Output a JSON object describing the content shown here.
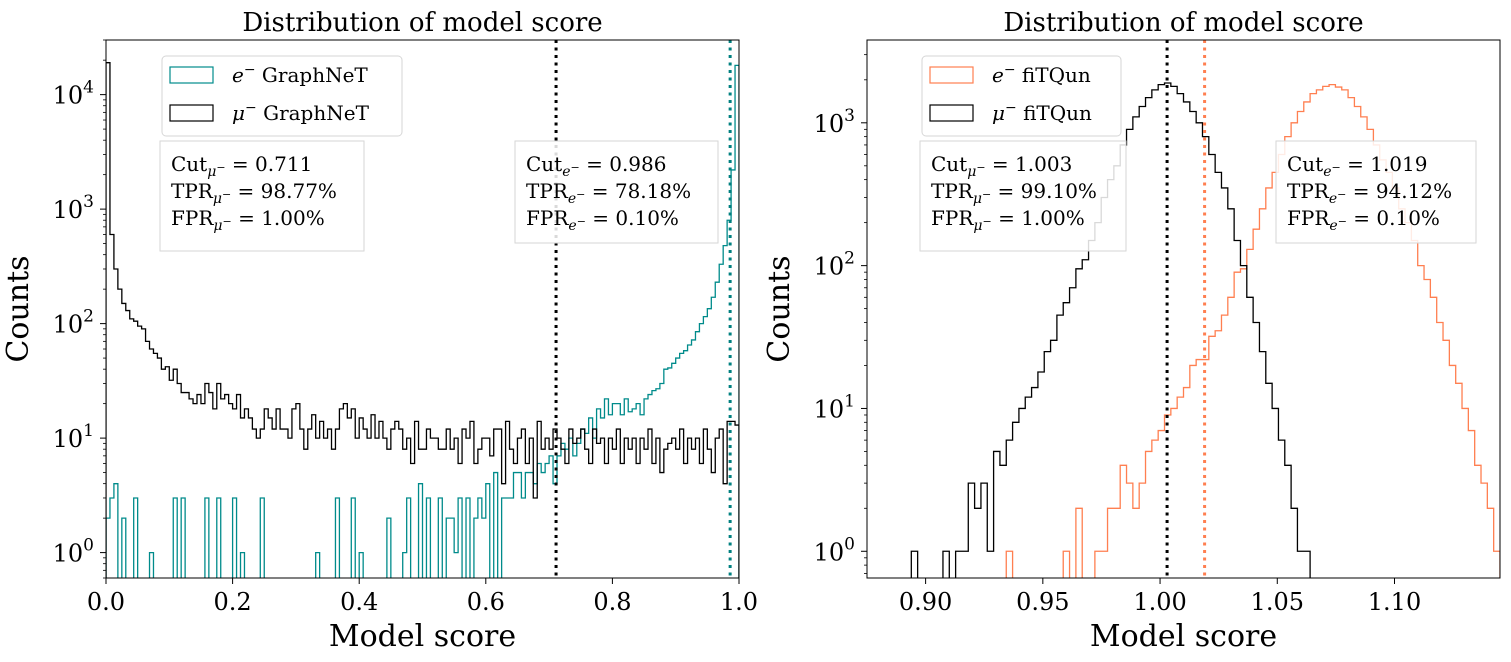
{
  "chart_data": [
    {
      "type": "histogram",
      "title": "Distribution of model score",
      "xlabel": "Model score",
      "ylabel": "Counts",
      "xlim": [
        0.0,
        1.0
      ],
      "ylim": [
        0.6,
        30000
      ],
      "yscale": "log",
      "xticks": [
        "0.0",
        "0.2",
        "0.4",
        "0.6",
        "0.8",
        "1.0"
      ],
      "xtick_values": [
        0.0,
        0.2,
        0.4,
        0.6,
        0.8,
        1.0
      ],
      "yticks": [
        {
          "base": "10",
          "exp": "0",
          "value": 1
        },
        {
          "base": "10",
          "exp": "1",
          "value": 10
        },
        {
          "base": "10",
          "exp": "2",
          "value": 100
        },
        {
          "base": "10",
          "exp": "3",
          "value": 1000
        },
        {
          "base": "10",
          "exp": "4",
          "value": 10000
        }
      ],
      "grid": false,
      "legend_position": "upper-left",
      "bins": {
        "start": 0.0,
        "width": 0.00625,
        "count": 160
      },
      "series": [
        {
          "name_main": "e",
          "name_sup": "−",
          "name_rest": " GraphNeT",
          "color": "#008b8b",
          "counts": [
            2,
            3,
            4,
            0,
            2,
            0,
            0,
            3,
            0,
            0,
            0,
            1,
            0,
            0,
            0,
            0,
            0,
            3,
            0,
            3,
            0,
            0,
            0,
            0,
            0,
            3,
            0,
            0,
            3,
            0,
            0,
            0,
            3,
            0,
            1,
            0,
            0,
            0,
            0,
            3,
            0,
            0,
            0,
            0,
            0,
            0,
            0,
            0,
            0,
            0,
            0,
            0,
            0,
            1,
            0,
            0,
            0,
            0,
            3,
            0,
            0,
            0,
            3,
            0,
            1,
            0,
            0,
            0,
            0,
            0,
            0,
            2,
            0,
            0,
            0,
            1,
            3,
            0,
            0,
            4,
            0,
            3,
            0,
            0,
            3,
            0,
            2,
            2,
            1,
            3,
            0,
            3,
            0,
            2,
            3,
            2,
            4,
            0,
            5,
            0,
            3,
            3,
            3,
            5,
            5,
            3,
            5,
            5,
            4,
            6,
            5,
            6,
            7,
            4,
            7,
            9,
            8,
            10,
            7,
            9,
            12,
            11,
            15,
            10,
            18,
            15,
            22,
            16,
            20,
            20,
            16,
            22,
            17,
            18,
            20,
            16,
            22,
            24,
            26,
            27,
            30,
            40,
            41,
            45,
            50,
            55,
            58,
            65,
            72,
            85,
            100,
            115,
            135,
            170,
            230,
            330,
            480,
            800,
            2200,
            18000
          ]
        },
        {
          "name_main": "μ",
          "name_sup": "−",
          "name_rest": " GraphNeT",
          "color": "#000000",
          "counts": [
            19000,
            600,
            300,
            200,
            150,
            130,
            110,
            105,
            95,
            90,
            70,
            60,
            55,
            50,
            40,
            42,
            32,
            40,
            30,
            25,
            25,
            22,
            20,
            24,
            20,
            30,
            25,
            18,
            30,
            22,
            24,
            20,
            18,
            24,
            15,
            18,
            15,
            12,
            10,
            12,
            18,
            15,
            12,
            18,
            12,
            12,
            10,
            18,
            20,
            12,
            8,
            12,
            16,
            10,
            14,
            10,
            12,
            8,
            12,
            18,
            20,
            15,
            18,
            10,
            15,
            12,
            10,
            16,
            10,
            14,
            10,
            8,
            12,
            14,
            12,
            8,
            10,
            6,
            14,
            8,
            8,
            12,
            10,
            10,
            8,
            8,
            12,
            8,
            10,
            6,
            12,
            10,
            14,
            6,
            8,
            10,
            10,
            7,
            12,
            12,
            4,
            14,
            8,
            6,
            10,
            12,
            6,
            10,
            3,
            14,
            8,
            10,
            8,
            12,
            10,
            8,
            6,
            12,
            9,
            10,
            12,
            8,
            6,
            12,
            9,
            10,
            6,
            10,
            8,
            12,
            6,
            10,
            8,
            10,
            6,
            10,
            8,
            12,
            6,
            10,
            5,
            8,
            9,
            10,
            8,
            12,
            6,
            10,
            8,
            10,
            6,
            12,
            8,
            5,
            10,
            12,
            4,
            14,
            14,
            13
          ]
        }
      ],
      "cutlines": [
        {
          "x": 0.711,
          "color": "#000000"
        },
        {
          "x": 0.986,
          "color": "#008080"
        }
      ],
      "annotations": [
        {
          "lines": [
            {
              "pre": "Cut",
              "sub": "μ",
              "subsup": "−",
              "post": " = 0.711"
            },
            {
              "pre": "TPR",
              "sub": "μ",
              "subsup": "−",
              "post": " = 98.77%"
            },
            {
              "pre": "FPR",
              "sub": "μ",
              "subsup": "−",
              "post": " = 1.00%"
            }
          ]
        },
        {
          "lines": [
            {
              "pre": "Cut",
              "sub": "e",
              "subsup": "−",
              "post": " = 0.986"
            },
            {
              "pre": "TPR",
              "sub": "e",
              "subsup": "−",
              "post": " = 78.18%"
            },
            {
              "pre": "FPR",
              "sub": "e",
              "subsup": "−",
              "post": " = 0.10%"
            }
          ]
        }
      ]
    },
    {
      "type": "histogram",
      "title": "Distribution of model score",
      "xlabel": "Model score",
      "ylabel": "Counts",
      "xlim": [
        0.875,
        1.145
      ],
      "ylim": [
        0.65,
        3800
      ],
      "yscale": "log",
      "xticks": [
        "0.90",
        "0.95",
        "1.00",
        "1.05",
        "1.10"
      ],
      "xtick_values": [
        0.9,
        0.95,
        1.0,
        1.05,
        1.1
      ],
      "yticks": [
        {
          "base": "10",
          "exp": "0",
          "value": 1
        },
        {
          "base": "10",
          "exp": "1",
          "value": 10
        },
        {
          "base": "10",
          "exp": "2",
          "value": 100
        },
        {
          "base": "10",
          "exp": "3",
          "value": 1000
        }
      ],
      "grid": false,
      "legend_position": "upper-left",
      "bins": {
        "start": 0.875,
        "width": 0.0027,
        "count": 100
      },
      "series": [
        {
          "name_main": "e",
          "name_sup": "−",
          "name_rest": " fiTQun",
          "color": "#ff7f50",
          "counts": [
            0,
            0,
            0,
            0,
            0,
            0,
            0,
            0,
            0,
            0,
            0,
            0,
            0,
            0,
            0,
            0,
            0,
            0,
            0,
            0,
            0,
            0,
            1,
            0,
            0,
            0,
            0,
            0,
            0,
            0,
            0,
            1,
            0,
            2,
            0,
            0,
            1,
            1,
            2,
            2,
            4,
            3,
            2,
            3,
            5,
            6,
            7,
            9,
            10,
            12,
            14,
            20,
            22,
            22,
            32,
            35,
            45,
            60,
            90,
            95,
            130,
            180,
            250,
            350,
            450,
            600,
            800,
            1000,
            1200,
            1400,
            1600,
            1700,
            1800,
            1850,
            1780,
            1700,
            1500,
            1300,
            1100,
            900,
            700,
            550,
            450,
            350,
            250,
            200,
            150,
            100,
            80,
            60,
            40,
            30,
            20,
            15,
            10,
            7,
            4,
            3,
            2,
            1
          ]
        },
        {
          "name_main": "μ",
          "name_sup": "−",
          "name_rest": " fiTQun",
          "color": "#000000",
          "counts": [
            0,
            0,
            0,
            0,
            0,
            0,
            0,
            1,
            0,
            0,
            0,
            0,
            1,
            0,
            1,
            1,
            3,
            2,
            3,
            1,
            5,
            4,
            6,
            8,
            10,
            12,
            14,
            18,
            25,
            30,
            45,
            55,
            70,
            95,
            110,
            150,
            200,
            300,
            400,
            500,
            700,
            900,
            1100,
            1300,
            1500,
            1700,
            1850,
            1900,
            1800,
            1600,
            1400,
            1200,
            1000,
            800,
            600,
            450,
            350,
            250,
            150,
            100,
            60,
            40,
            25,
            15,
            10,
            6,
            4,
            2,
            1,
            1,
            0,
            0,
            0,
            0,
            0,
            0,
            0,
            0,
            0,
            0,
            0,
            0,
            0,
            0,
            0,
            0,
            0,
            0,
            0,
            0,
            0,
            0,
            0,
            0,
            0,
            0,
            0,
            0,
            0,
            0
          ]
        }
      ],
      "cutlines": [
        {
          "x": 1.003,
          "color": "#000000"
        },
        {
          "x": 1.019,
          "color": "#ff7f50"
        }
      ],
      "annotations": [
        {
          "lines": [
            {
              "pre": "Cut",
              "sub": "μ",
              "subsup": "−",
              "post": " = 1.003"
            },
            {
              "pre": "TPR",
              "sub": "μ",
              "subsup": "−",
              "post": " = 99.10%"
            },
            {
              "pre": "FPR",
              "sub": "μ",
              "subsup": "−",
              "post": " = 1.00%"
            }
          ]
        },
        {
          "lines": [
            {
              "pre": "Cut",
              "sub": "e",
              "subsup": "−",
              "post": " = 1.019"
            },
            {
              "pre": "TPR",
              "sub": "e",
              "subsup": "−",
              "post": " = 94.12%"
            },
            {
              "pre": "FPR",
              "sub": "e",
              "subsup": "−",
              "post": " = 0.10%"
            }
          ]
        }
      ]
    }
  ]
}
